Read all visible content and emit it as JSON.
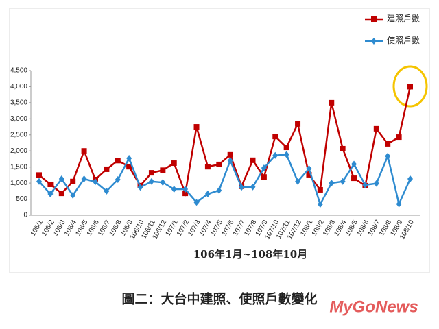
{
  "chart_data": {
    "type": "line",
    "categories": [
      "106/1",
      "106/2",
      "106/3",
      "106/4",
      "106/5",
      "106/6",
      "106/7",
      "106/8",
      "106/9",
      "106/10",
      "106/11",
      "106/12",
      "107/1",
      "107/2",
      "107/3",
      "107/4",
      "107/5",
      "107/6",
      "107/7",
      "107/8",
      "107/9",
      "107/10",
      "107/11",
      "107/12",
      "108/1",
      "108/2",
      "108/3",
      "108/4",
      "108/5",
      "108/6",
      "108/7",
      "108/8",
      "108/9",
      "108/10"
    ],
    "series": [
      {
        "name": "建照戶數",
        "color": "#c00000",
        "marker": "square",
        "values": [
          1250,
          960,
          680,
          1050,
          2000,
          1110,
          1430,
          1700,
          1510,
          920,
          1320,
          1400,
          1620,
          680,
          2750,
          1510,
          1580,
          1880,
          900,
          1710,
          1190,
          2450,
          2110,
          2840,
          1260,
          790,
          3500,
          2070,
          1150,
          920,
          2690,
          2220,
          2430,
          4000
        ]
      },
      {
        "name": "使照戶數",
        "color": "#2e8bd0",
        "marker": "diamond",
        "values": [
          1050,
          660,
          1130,
          620,
          1130,
          1040,
          750,
          1110,
          1770,
          870,
          1050,
          1020,
          810,
          810,
          400,
          660,
          770,
          1700,
          870,
          880,
          1470,
          1860,
          1890,
          1050,
          1450,
          340,
          1000,
          1050,
          1590,
          940,
          990,
          1840,
          350,
          1130
        ]
      }
    ],
    "ylim": [
      0,
      4500
    ],
    "yticks": [
      0,
      500,
      {
        "value": 1000,
        "label": "1,000"
      },
      {
        "value": 1500,
        "label": "1,500"
      },
      {
        "value": 2000,
        "label": "2,000"
      },
      {
        "value": 2500,
        "label": "2,500"
      },
      {
        "value": 3000,
        "label": "3,000"
      },
      {
        "value": 3500,
        "label": "3,500"
      },
      {
        "value": 4000,
        "label": "4,000"
      },
      {
        "value": 4500,
        "label": "4,500"
      }
    ],
    "grid": false,
    "legend": "top-right",
    "x_label": "106年1月~108年10月",
    "caption": "圖二：大台中建照、使照戶數變化",
    "watermark": "MyGoNews"
  }
}
